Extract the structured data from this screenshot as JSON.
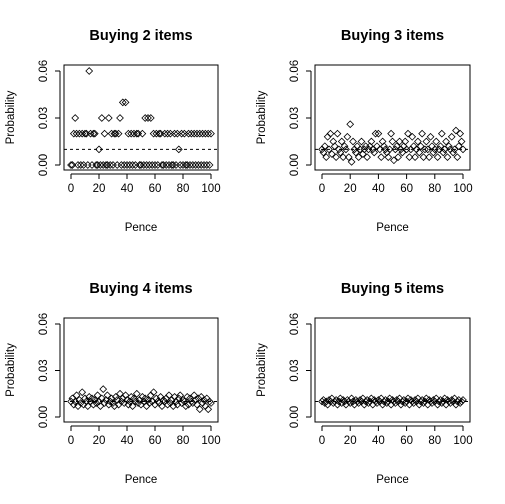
{
  "chart_data": [
    {
      "type": "scatter",
      "title": "Buying 2 items",
      "xlabel": "Pence",
      "ylabel": "Probability",
      "xlim": [
        0,
        100
      ],
      "ylim": [
        0,
        0.06
      ],
      "xticks": [
        0,
        20,
        40,
        60,
        80,
        100
      ],
      "yticks": [
        0.0,
        0.03,
        0.06
      ],
      "ytick_labels": [
        "0.00",
        "0.03",
        "0.06"
      ],
      "reference_line": 0.01,
      "marker": "open-diamond",
      "grid": false,
      "x": [
        0,
        1,
        2,
        3,
        4,
        5,
        6,
        7,
        8,
        9,
        10,
        11,
        12,
        13,
        14,
        15,
        16,
        17,
        18,
        19,
        20,
        21,
        22,
        23,
        24,
        25,
        26,
        27,
        28,
        29,
        30,
        31,
        32,
        33,
        34,
        35,
        36,
        37,
        38,
        39,
        40,
        41,
        42,
        43,
        44,
        45,
        46,
        47,
        48,
        49,
        50,
        51,
        52,
        53,
        54,
        55,
        56,
        57,
        58,
        59,
        60,
        61,
        62,
        63,
        64,
        65,
        66,
        67,
        68,
        69,
        70,
        71,
        72,
        73,
        74,
        75,
        76,
        77,
        78,
        79,
        80,
        81,
        82,
        83,
        84,
        85,
        86,
        87,
        88,
        89,
        90,
        91,
        92,
        93,
        94,
        95,
        96,
        97,
        98,
        99,
        100
      ],
      "y": [
        0,
        0,
        0.02,
        0.03,
        0.02,
        0,
        0.02,
        0,
        0.02,
        0,
        0.02,
        0.02,
        0,
        0.06,
        0.02,
        0,
        0.02,
        0.02,
        0,
        0,
        0.01,
        0,
        0.03,
        0,
        0.02,
        0,
        0,
        0.03,
        0,
        0.02,
        0,
        0.02,
        0.02,
        0,
        0.02,
        0.03,
        0,
        0.04,
        0,
        0.04,
        0,
        0.02,
        0,
        0.02,
        0,
        0.02,
        0,
        0.02,
        0.02,
        0,
        0,
        0.02,
        0,
        0.03,
        0,
        0.03,
        0,
        0.03,
        0,
        0.02,
        0,
        0.02,
        0,
        0.02,
        0.02,
        0,
        0,
        0.02,
        0,
        0.02,
        0,
        0.02,
        0,
        0,
        0.02,
        0,
        0.02,
        0.01,
        0,
        0.02,
        0,
        0.02,
        0,
        0,
        0.02,
        0,
        0.02,
        0,
        0.02,
        0,
        0.02,
        0,
        0.02,
        0,
        0.02,
        0,
        0.02,
        0,
        0.02,
        0,
        0.02
      ]
    },
    {
      "type": "scatter",
      "title": "Buying 3 items",
      "xlabel": "Pence",
      "ylabel": "Probability",
      "xlim": [
        0,
        100
      ],
      "ylim": [
        0,
        0.06
      ],
      "xticks": [
        0,
        20,
        40,
        60,
        80,
        100
      ],
      "yticks": [
        0.0,
        0.03,
        0.06
      ],
      "ytick_labels": [
        "0.00",
        "0.03",
        "0.06"
      ],
      "reference_line": 0.01,
      "marker": "open-diamond",
      "grid": false,
      "x": [
        0,
        1,
        2,
        3,
        4,
        5,
        6,
        7,
        8,
        9,
        10,
        11,
        12,
        13,
        14,
        15,
        16,
        17,
        18,
        19,
        20,
        21,
        22,
        23,
        24,
        25,
        26,
        27,
        28,
        29,
        30,
        31,
        32,
        33,
        34,
        35,
        36,
        37,
        38,
        39,
        40,
        41,
        42,
        43,
        44,
        45,
        46,
        47,
        48,
        49,
        50,
        51,
        52,
        53,
        54,
        55,
        56,
        57,
        58,
        59,
        60,
        61,
        62,
        63,
        64,
        65,
        66,
        67,
        68,
        69,
        70,
        71,
        72,
        73,
        74,
        75,
        76,
        77,
        78,
        79,
        80,
        81,
        82,
        83,
        84,
        85,
        86,
        87,
        88,
        89,
        90,
        91,
        92,
        93,
        94,
        95,
        96,
        97,
        98,
        99,
        100
      ],
      "y": [
        0.01,
        0.008,
        0.012,
        0.005,
        0.018,
        0.01,
        0.02,
        0.007,
        0.015,
        0.012,
        0.005,
        0.02,
        0.01,
        0.008,
        0.015,
        0.005,
        0.012,
        0.01,
        0.018,
        0.005,
        0.026,
        0.002,
        0.015,
        0.01,
        0.008,
        0.012,
        0.005,
        0.01,
        0.015,
        0.007,
        0.01,
        0.012,
        0.005,
        0.01,
        0.012,
        0.015,
        0.01,
        0.008,
        0.02,
        0.012,
        0.02,
        0.01,
        0.005,
        0.015,
        0.012,
        0.01,
        0.008,
        0.005,
        0.01,
        0.02,
        0.015,
        0.003,
        0.01,
        0.012,
        0.005,
        0.015,
        0.01,
        0.008,
        0.012,
        0.015,
        0.01,
        0.02,
        0.005,
        0.01,
        0.018,
        0.012,
        0.005,
        0.01,
        0.015,
        0.008,
        0.012,
        0.02,
        0.005,
        0.01,
        0.015,
        0.01,
        0.005,
        0.018,
        0.012,
        0.008,
        0.01,
        0.015,
        0.005,
        0.01,
        0.012,
        0.02,
        0.008,
        0.01,
        0.015,
        0.005,
        0.012,
        0.01,
        0.018,
        0.008,
        0.01,
        0.022,
        0.005,
        0.012,
        0.02,
        0.015,
        0.01
      ]
    },
    {
      "type": "scatter",
      "title": "Buying 4 items",
      "xlabel": "Pence",
      "ylabel": "Probability",
      "xlim": [
        0,
        100
      ],
      "ylim": [
        0,
        0.06
      ],
      "xticks": [
        0,
        20,
        40,
        60,
        80,
        100
      ],
      "yticks": [
        0.0,
        0.03,
        0.06
      ],
      "ytick_labels": [
        "0.00",
        "0.03",
        "0.06"
      ],
      "reference_line": 0.01,
      "marker": "open-diamond",
      "grid": false,
      "x": [
        0,
        1,
        2,
        3,
        4,
        5,
        6,
        7,
        8,
        9,
        10,
        11,
        12,
        13,
        14,
        15,
        16,
        17,
        18,
        19,
        20,
        21,
        22,
        23,
        24,
        25,
        26,
        27,
        28,
        29,
        30,
        31,
        32,
        33,
        34,
        35,
        36,
        37,
        38,
        39,
        40,
        41,
        42,
        43,
        44,
        45,
        46,
        47,
        48,
        49,
        50,
        51,
        52,
        53,
        54,
        55,
        56,
        57,
        58,
        59,
        60,
        61,
        62,
        63,
        64,
        65,
        66,
        67,
        68,
        69,
        70,
        71,
        72,
        73,
        74,
        75,
        76,
        77,
        78,
        79,
        80,
        81,
        82,
        83,
        84,
        85,
        86,
        87,
        88,
        89,
        90,
        91,
        92,
        93,
        94,
        95,
        96,
        97,
        98,
        99,
        100
      ],
      "y": [
        0.01,
        0.012,
        0.008,
        0.01,
        0.014,
        0.007,
        0.011,
        0.009,
        0.016,
        0.008,
        0.012,
        0.01,
        0.007,
        0.013,
        0.01,
        0.012,
        0.008,
        0.011,
        0.009,
        0.014,
        0.01,
        0.007,
        0.012,
        0.018,
        0.009,
        0.011,
        0.014,
        0.008,
        0.01,
        0.012,
        0.009,
        0.007,
        0.013,
        0.011,
        0.008,
        0.015,
        0.01,
        0.012,
        0.009,
        0.014,
        0.011,
        0.008,
        0.01,
        0.013,
        0.007,
        0.012,
        0.01,
        0.015,
        0.009,
        0.011,
        0.008,
        0.013,
        0.01,
        0.012,
        0.007,
        0.011,
        0.009,
        0.014,
        0.01,
        0.016,
        0.008,
        0.012,
        0.01,
        0.009,
        0.013,
        0.007,
        0.011,
        0.01,
        0.012,
        0.008,
        0.014,
        0.009,
        0.011,
        0.007,
        0.013,
        0.01,
        0.008,
        0.012,
        0.014,
        0.009,
        0.011,
        0.01,
        0.007,
        0.013,
        0.008,
        0.012,
        0.01,
        0.009,
        0.014,
        0.011,
        0.008,
        0.012,
        0.005,
        0.013,
        0.009,
        0.011,
        0.007,
        0.012,
        0.005,
        0.01,
        0.009
      ]
    },
    {
      "type": "scatter",
      "title": "Buying 5 items",
      "xlabel": "Pence",
      "ylabel": "Probability",
      "xlim": [
        0,
        100
      ],
      "ylim": [
        0,
        0.06
      ],
      "xticks": [
        0,
        20,
        40,
        60,
        80,
        100
      ],
      "yticks": [
        0.0,
        0.03,
        0.06
      ],
      "ytick_labels": [
        "0.00",
        "0.03",
        "0.06"
      ],
      "reference_line": 0.01,
      "marker": "open-diamond",
      "grid": false,
      "x": [
        0,
        1,
        2,
        3,
        4,
        5,
        6,
        7,
        8,
        9,
        10,
        11,
        12,
        13,
        14,
        15,
        16,
        17,
        18,
        19,
        20,
        21,
        22,
        23,
        24,
        25,
        26,
        27,
        28,
        29,
        30,
        31,
        32,
        33,
        34,
        35,
        36,
        37,
        38,
        39,
        40,
        41,
        42,
        43,
        44,
        45,
        46,
        47,
        48,
        49,
        50,
        51,
        52,
        53,
        54,
        55,
        56,
        57,
        58,
        59,
        60,
        61,
        62,
        63,
        64,
        65,
        66,
        67,
        68,
        69,
        70,
        71,
        72,
        73,
        74,
        75,
        76,
        77,
        78,
        79,
        80,
        81,
        82,
        83,
        84,
        85,
        86,
        87,
        88,
        89,
        90,
        91,
        92,
        93,
        94,
        95,
        96,
        97,
        98,
        99,
        100
      ],
      "y": [
        0.01,
        0.011,
        0.009,
        0.01,
        0.008,
        0.011,
        0.01,
        0.012,
        0.009,
        0.01,
        0.011,
        0.008,
        0.01,
        0.012,
        0.009,
        0.011,
        0.01,
        0.008,
        0.011,
        0.01,
        0.009,
        0.012,
        0.01,
        0.008,
        0.011,
        0.01,
        0.009,
        0.011,
        0.01,
        0.012,
        0.008,
        0.01,
        0.011,
        0.009,
        0.01,
        0.012,
        0.008,
        0.011,
        0.01,
        0.009,
        0.011,
        0.01,
        0.012,
        0.008,
        0.01,
        0.011,
        0.009,
        0.01,
        0.012,
        0.008,
        0.011,
        0.01,
        0.009,
        0.011,
        0.01,
        0.012,
        0.008,
        0.01,
        0.011,
        0.009,
        0.01,
        0.012,
        0.008,
        0.011,
        0.01,
        0.009,
        0.011,
        0.01,
        0.012,
        0.008,
        0.01,
        0.011,
        0.009,
        0.01,
        0.012,
        0.008,
        0.011,
        0.01,
        0.009,
        0.011,
        0.01,
        0.012,
        0.008,
        0.01,
        0.011,
        0.009,
        0.01,
        0.012,
        0.008,
        0.011,
        0.01,
        0.009,
        0.011,
        0.01,
        0.012,
        0.008,
        0.01,
        0.011,
        0.009,
        0.01,
        0.011
      ]
    }
  ]
}
